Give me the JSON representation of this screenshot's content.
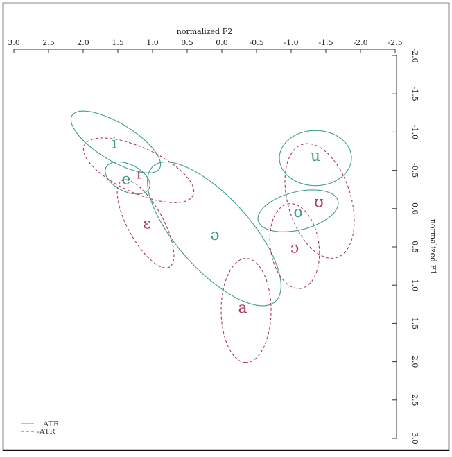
{
  "chart_data": {
    "type": "scatter",
    "title": "",
    "x_axis": {
      "label": "normalized F2",
      "position": "top",
      "reversed": true,
      "range": [
        3.0,
        -2.5
      ],
      "ticks": [
        3.0,
        2.5,
        2.0,
        1.5,
        1.0,
        0.5,
        0.0,
        -0.5,
        -1.0,
        -1.5,
        -2.0,
        -2.5
      ],
      "tick_labels": [
        "3.0",
        "2.5",
        "2.0",
        "1.5",
        "1.0",
        "0.5",
        "0.0",
        "-0.5",
        "-1.0",
        "-1.5",
        "-2.0",
        "-2.5"
      ]
    },
    "y_axis": {
      "label": "normalized F1",
      "position": "right",
      "reversed": true,
      "range": [
        -2.0,
        3.0
      ],
      "ticks": [
        -2.0,
        -1.5,
        -1.0,
        -0.5,
        0.0,
        0.5,
        1.0,
        1.5,
        2.0,
        2.5,
        3.0
      ],
      "tick_labels": [
        "-2.0",
        "-1.5",
        "-1.0",
        "-0.5",
        "0.0",
        "0.5",
        "1.0",
        "1.5",
        "2.0",
        "2.5",
        "3.0"
      ]
    },
    "grid": false,
    "legend": {
      "placement": "bottom-left",
      "entries": [
        {
          "label": "+ATR",
          "group": "plus"
        },
        {
          "label": "-ATR",
          "group": "minus"
        }
      ]
    },
    "groups": {
      "plus": {
        "color": "#3a9e8c",
        "dash": "solid"
      },
      "minus": {
        "color": "#a8385f",
        "dash": "dashed"
      }
    },
    "vowels": [
      {
        "symbol": "i",
        "group": "plus",
        "f2": 1.55,
        "f1": -0.85
      },
      {
        "symbol": "e",
        "group": "plus",
        "f2": 1.38,
        "f1": -0.38
      },
      {
        "symbol": "ə",
        "group": "plus",
        "f2": 0.1,
        "f1": 0.35
      },
      {
        "symbol": "u",
        "group": "plus",
        "f2": -1.35,
        "f1": -0.68
      },
      {
        "symbol": "o",
        "group": "plus",
        "f2": -1.1,
        "f1": 0.05
      },
      {
        "symbol": "ɪ",
        "group": "minus",
        "f2": 1.2,
        "f1": -0.45
      },
      {
        "symbol": "ɛ",
        "group": "minus",
        "f2": 1.08,
        "f1": 0.2
      },
      {
        "symbol": "a",
        "group": "minus",
        "f2": -0.3,
        "f1": 1.3
      },
      {
        "symbol": "ʊ",
        "group": "minus",
        "f2": -1.4,
        "f1": -0.08
      },
      {
        "symbol": "ɔ",
        "group": "minus",
        "f2": -1.05,
        "f1": 0.52
      }
    ],
    "ellipses": [
      {
        "vowel": "i",
        "group": "plus",
        "center_f2": 1.53,
        "center_f1": -0.87,
        "semi_axis_a": 0.72,
        "semi_axis_b": 0.25,
        "tilt_deg": 28
      },
      {
        "vowel": "e",
        "group": "plus",
        "center_f2": 1.36,
        "center_f1": -0.4,
        "semi_axis_a": 0.34,
        "semi_axis_b": 0.18,
        "tilt_deg": 22
      },
      {
        "vowel": "ə",
        "group": "plus",
        "center_f2": 0.11,
        "center_f1": 0.33,
        "semi_axis_a": 1.25,
        "semi_axis_b": 0.5,
        "tilt_deg": 44
      },
      {
        "vowel": "u",
        "group": "plus",
        "center_f2": -1.35,
        "center_f1": -0.66,
        "semi_axis_a": 0.52,
        "semi_axis_b": 0.36,
        "tilt_deg": 0
      },
      {
        "vowel": "o",
        "group": "plus",
        "center_f2": -1.1,
        "center_f1": 0.03,
        "semi_axis_a": 0.59,
        "semi_axis_b": 0.25,
        "tilt_deg": -12
      },
      {
        "vowel": "ɪ",
        "group": "minus",
        "center_f2": 1.2,
        "center_f1": -0.5,
        "semi_axis_a": 0.85,
        "semi_axis_b": 0.3,
        "tilt_deg": 22
      },
      {
        "vowel": "ɛ",
        "group": "minus",
        "center_f2": 1.1,
        "center_f1": 0.2,
        "semi_axis_a": 0.66,
        "semi_axis_b": 0.25,
        "tilt_deg": 58
      },
      {
        "vowel": "a",
        "group": "minus",
        "center_f2": -0.35,
        "center_f1": 1.33,
        "semi_axis_a": 0.68,
        "semi_axis_b": 0.36,
        "tilt_deg": 90
      },
      {
        "vowel": "ʊ",
        "group": "minus",
        "center_f2": -1.41,
        "center_f1": -0.1,
        "semi_axis_a": 0.78,
        "semi_axis_b": 0.45,
        "tilt_deg": 70
      },
      {
        "vowel": "ɔ",
        "group": "minus",
        "center_f2": -1.05,
        "center_f1": 0.49,
        "semi_axis_a": 0.56,
        "semi_axis_b": 0.35,
        "tilt_deg": 80
      }
    ]
  }
}
